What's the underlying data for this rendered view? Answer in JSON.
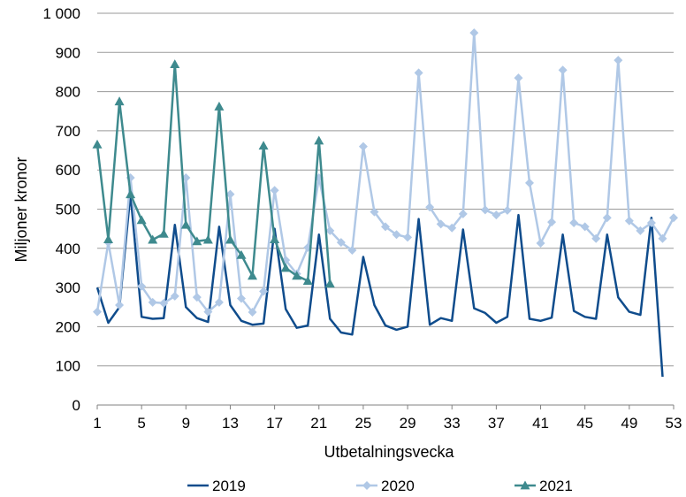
{
  "chart_data": {
    "type": "line",
    "xlabel": "Utbetalningsvecka",
    "ylabel": "Miljoner kronor",
    "ylim": [
      0,
      1000
    ],
    "xlim": [
      1,
      53
    ],
    "y_ticks": [
      0,
      100,
      200,
      300,
      400,
      500,
      600,
      700,
      800,
      900,
      1000
    ],
    "y_tick_labels": [
      "0",
      "100",
      "200",
      "300",
      "400",
      "500",
      "600",
      "700",
      "800",
      "900",
      "1 000"
    ],
    "x_ticks": [
      1,
      5,
      9,
      13,
      17,
      21,
      25,
      29,
      33,
      37,
      41,
      45,
      49,
      53
    ],
    "x_tick_labels": [
      "1",
      "5",
      "9",
      "13",
      "17",
      "21",
      "25",
      "29",
      "33",
      "37",
      "41",
      "45",
      "49",
      "53"
    ],
    "grid": "horizontal",
    "legend_position": "bottom",
    "series": [
      {
        "name": "2019",
        "color": "#0f4c8c",
        "marker": "none",
        "x": [
          1,
          2,
          3,
          4,
          5,
          6,
          7,
          8,
          9,
          10,
          11,
          12,
          13,
          14,
          15,
          16,
          17,
          18,
          19,
          20,
          21,
          22,
          23,
          24,
          25,
          26,
          27,
          28,
          29,
          30,
          31,
          32,
          33,
          34,
          35,
          36,
          37,
          38,
          39,
          40,
          41,
          42,
          43,
          44,
          45,
          46,
          47,
          48,
          49,
          50,
          51,
          52
        ],
        "values": [
          300,
          210,
          250,
          540,
          225,
          220,
          222,
          460,
          250,
          222,
          212,
          455,
          255,
          215,
          205,
          208,
          450,
          245,
          197,
          203,
          435,
          220,
          185,
          180,
          378,
          255,
          203,
          192,
          200,
          475,
          205,
          222,
          215,
          448,
          247,
          235,
          210,
          225,
          485,
          220,
          215,
          223,
          435,
          240,
          225,
          220,
          435,
          275,
          238,
          230,
          478,
          72
        ]
      },
      {
        "name": "2020",
        "color": "#b0c8e6",
        "marker": "diamond",
        "x": [
          1,
          2,
          3,
          4,
          5,
          6,
          7,
          8,
          9,
          10,
          11,
          12,
          13,
          14,
          15,
          16,
          17,
          18,
          19,
          20,
          21,
          22,
          23,
          24,
          25,
          26,
          27,
          28,
          29,
          30,
          31,
          32,
          33,
          34,
          35,
          36,
          37,
          38,
          39,
          40,
          41,
          42,
          43,
          44,
          45,
          46,
          47,
          48,
          49,
          50,
          51,
          52,
          53
        ],
        "values": [
          238,
          415,
          255,
          580,
          303,
          262,
          260,
          278,
          580,
          275,
          238,
          262,
          538,
          272,
          237,
          290,
          548,
          370,
          335,
          402,
          580,
          445,
          415,
          395,
          660,
          493,
          455,
          435,
          428,
          848,
          505,
          462,
          452,
          488,
          950,
          498,
          485,
          497,
          835,
          567,
          413,
          467,
          855,
          465,
          455,
          425,
          478,
          880,
          470,
          445,
          465,
          425,
          478
        ]
      },
      {
        "name": "2021",
        "color": "#3e8a8e",
        "marker": "triangle",
        "x": [
          1,
          2,
          3,
          4,
          5,
          6,
          7,
          8,
          9,
          10,
          11,
          12,
          13,
          14,
          15,
          16,
          17,
          18,
          19,
          20,
          21,
          22
        ],
        "values": [
          665,
          423,
          775,
          538,
          472,
          422,
          437,
          870,
          460,
          418,
          422,
          762,
          422,
          383,
          330,
          662,
          423,
          350,
          330,
          317,
          675,
          310
        ]
      }
    ]
  }
}
